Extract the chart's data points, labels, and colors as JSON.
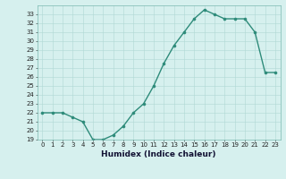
{
  "x": [
    0,
    1,
    2,
    3,
    4,
    5,
    6,
    7,
    8,
    9,
    10,
    11,
    12,
    13,
    14,
    15,
    16,
    17,
    18,
    19,
    20,
    21,
    22,
    23
  ],
  "y": [
    22,
    22,
    22,
    21.5,
    21,
    19,
    19,
    19.5,
    20.5,
    22,
    23,
    25,
    27.5,
    29.5,
    31,
    32.5,
    33.5,
    33,
    32.5,
    32.5,
    32.5,
    31,
    26.5,
    26.5
  ],
  "line_color": "#2e8b7a",
  "marker_color": "#2e8b7a",
  "bg_color": "#d6f0ee",
  "grid_color": "#b0d8d4",
  "xlabel": "Humidex (Indice chaleur)",
  "xlim": [
    -0.5,
    23.5
  ],
  "ylim": [
    19,
    34
  ],
  "yticks": [
    19,
    20,
    21,
    22,
    23,
    24,
    25,
    26,
    27,
    28,
    29,
    30,
    31,
    32,
    33
  ],
  "xticks": [
    0,
    1,
    2,
    3,
    4,
    5,
    6,
    7,
    8,
    9,
    10,
    11,
    12,
    13,
    14,
    15,
    16,
    17,
    18,
    19,
    20,
    21,
    22,
    23
  ],
  "tick_fontsize": 5.0,
  "xlabel_fontsize": 6.5,
  "line_width": 1.0,
  "marker_size": 2.2
}
